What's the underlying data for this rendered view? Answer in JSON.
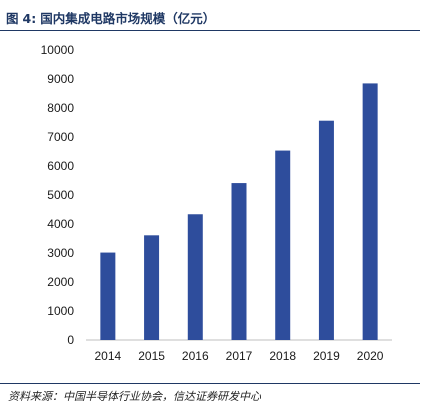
{
  "figure": {
    "label": "图",
    "number": "4:",
    "title": "国内集成电路市场规模（亿元）",
    "source": "资料来源：中国半导体行业协会，信达证券研发中心"
  },
  "chart_data": {
    "type": "bar",
    "title": "国内集成电路市场规模（亿元）",
    "xlabel": "",
    "ylabel": "",
    "categories": [
      "2014",
      "2015",
      "2016",
      "2017",
      "2018",
      "2019",
      "2020"
    ],
    "values": [
      3015,
      3610,
      4336,
      5411,
      6532,
      7562,
      8848
    ],
    "ylim": [
      0,
      10000
    ],
    "yticks": [
      0,
      1000,
      2000,
      3000,
      4000,
      5000,
      6000,
      7000,
      8000,
      9000,
      10000
    ],
    "grid": false,
    "legend": "none",
    "bar_color": "#2e4d9c"
  }
}
